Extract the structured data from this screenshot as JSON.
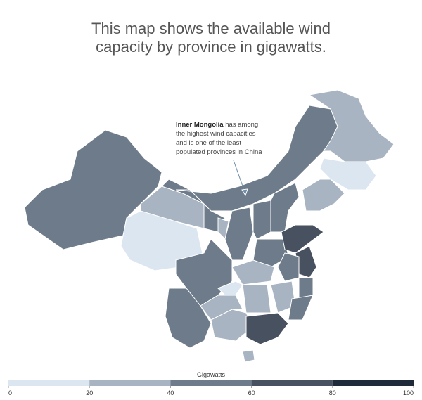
{
  "title": [
    "This map shows the available wind",
    "capacity by province in gigawatts."
  ],
  "annotation": {
    "bold": "Inner Mongolia",
    "lines": [
      " has among",
      "the highest wind capacities",
      "and is one of the least",
      "populated provinces in China"
    ]
  },
  "legend": {
    "title": "Gigawatts",
    "ticks": [
      0,
      20,
      40,
      60,
      80,
      100
    ],
    "colors": [
      "#dce6f1",
      "#a8b4c2",
      "#6e7b8a",
      "#47515f",
      "#1f2a3a"
    ]
  }
}
